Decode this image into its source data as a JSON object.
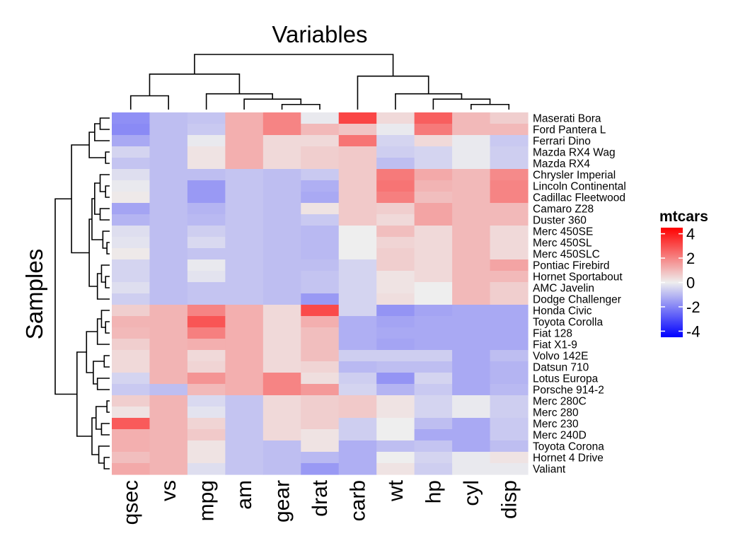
{
  "chart_data": {
    "type": "heatmap",
    "title": "Variables",
    "ylabel": "Samples",
    "legend_title": "mtcars",
    "legend_ticks": [
      4,
      2,
      0,
      -2,
      -4
    ],
    "legend_range": [
      -4.5,
      4.5
    ],
    "legend_position": "right",
    "columns": [
      "qsec",
      "vs",
      "mpg",
      "am",
      "gear",
      "drat",
      "carb",
      "wt",
      "hp",
      "cyl",
      "disp"
    ],
    "rows": [
      "Maserati Bora",
      "Ford Pantera L",
      "Ferrari Dino",
      "Mazda RX4 Wag",
      "Mazda RX4",
      "Chrysler Imperial",
      "Lincoln Continental",
      "Cadillac Fleetwood",
      "Camaro Z28",
      "Duster 360",
      "Merc 450SE",
      "Merc 450SL",
      "Merc 450SLC",
      "Pontiac Firebird",
      "Hornet Sportabout",
      "AMC Javelin",
      "Dodge Challenger",
      "Honda Civic",
      "Toyota Corolla",
      "Fiat 128",
      "Fiat X1-9",
      "Volvo 142E",
      "Datsun 710",
      "Lotus Europa",
      "Porsche 914-2",
      "Merc 280C",
      "Merc 280",
      "Merc 230",
      "Merc 240D",
      "Toyota Corona",
      "Hornet 4 Drive",
      "Valiant"
    ],
    "values": [
      [
        -1.8,
        -0.9,
        -0.8,
        1.2,
        2.0,
        -0.1,
        3.2,
        0.4,
        2.7,
        1.0,
        0.6
      ],
      [
        -1.9,
        -0.9,
        -0.7,
        1.2,
        2.0,
        1.0,
        0.8,
        -0.1,
        2.2,
        1.0,
        1.0
      ],
      [
        -1.3,
        -0.9,
        -0.1,
        1.2,
        0.4,
        0.4,
        2.3,
        -0.5,
        0.4,
        -0.1,
        -0.7
      ],
      [
        -0.5,
        -0.9,
        0.2,
        1.2,
        0.4,
        0.6,
        0.7,
        -0.6,
        -0.5,
        -0.1,
        -0.6
      ],
      [
        -0.8,
        -0.9,
        0.2,
        1.2,
        0.4,
        0.6,
        0.7,
        -0.9,
        -0.5,
        -0.1,
        -0.6
      ],
      [
        -0.3,
        -0.9,
        -0.9,
        -0.8,
        -0.9,
        -0.7,
        0.7,
        2.2,
        1.3,
        1.0,
        1.9
      ],
      [
        -0.1,
        -0.9,
        -1.6,
        -0.8,
        -0.9,
        -1.2,
        0.7,
        2.3,
        1.1,
        1.0,
        2.0
      ],
      [
        0.1,
        -0.9,
        -1.6,
        -0.8,
        -0.9,
        -1.3,
        0.7,
        2.1,
        0.9,
        1.0,
        2.0
      ],
      [
        -1.4,
        -0.9,
        -1.1,
        -0.8,
        -0.9,
        0.2,
        0.7,
        0.6,
        1.4,
        1.0,
        1.0
      ],
      [
        -1.1,
        -0.9,
        -1.0,
        -0.8,
        -0.9,
        -0.7,
        0.7,
        0.4,
        1.4,
        1.0,
        1.0
      ],
      [
        -0.3,
        -0.9,
        -0.6,
        -0.8,
        -0.9,
        -1.0,
        0.0,
        0.9,
        0.4,
        1.0,
        0.4
      ],
      [
        -0.2,
        -0.9,
        -0.4,
        -0.8,
        -0.9,
        -1.0,
        0.0,
        0.5,
        0.4,
        1.0,
        0.4
      ],
      [
        0.1,
        -0.9,
        -0.8,
        -0.8,
        -0.9,
        -1.0,
        0.0,
        0.6,
        0.4,
        1.0,
        0.4
      ],
      [
        -0.5,
        -0.9,
        -0.1,
        -0.8,
        -0.9,
        -0.9,
        -0.5,
        0.6,
        0.4,
        1.0,
        1.4
      ],
      [
        -0.5,
        -0.9,
        -0.2,
        -0.8,
        -0.9,
        -0.8,
        -0.5,
        0.2,
        0.4,
        1.0,
        1.0
      ],
      [
        -0.3,
        -0.9,
        -0.8,
        -0.8,
        -0.9,
        -0.8,
        -0.5,
        0.2,
        0.0,
        1.0,
        0.6
      ],
      [
        -0.6,
        -0.9,
        -0.8,
        -0.8,
        -0.9,
        -1.6,
        -0.5,
        0.3,
        0.0,
        1.0,
        0.6
      ],
      [
        0.6,
        1.1,
        2.0,
        1.2,
        0.4,
        3.1,
        -0.5,
        -1.7,
        -1.4,
        -1.3,
        -1.3
      ],
      [
        1.1,
        1.1,
        2.9,
        1.2,
        0.4,
        1.2,
        -1.2,
        -1.4,
        -1.3,
        -1.3,
        -1.3
      ],
      [
        1.0,
        1.1,
        2.1,
        1.2,
        0.4,
        0.9,
        -1.2,
        -1.3,
        -1.3,
        -1.3,
        -1.3
      ],
      [
        0.6,
        1.1,
        1.2,
        1.2,
        0.4,
        0.9,
        -1.2,
        -1.4,
        -1.3,
        -1.3,
        -1.3
      ],
      [
        0.4,
        1.1,
        0.4,
        1.2,
        0.4,
        0.9,
        -0.6,
        -0.6,
        -0.6,
        -1.3,
        -0.9
      ],
      [
        0.4,
        1.1,
        0.5,
        1.2,
        0.4,
        0.5,
        -1.0,
        -0.9,
        -0.9,
        -1.3,
        -1.1
      ],
      [
        -0.5,
        1.1,
        1.7,
        1.2,
        2.0,
        0.3,
        -0.6,
        -1.7,
        -0.5,
        -1.3,
        -1.1
      ],
      [
        -0.7,
        -0.9,
        1.0,
        1.2,
        2.0,
        1.6,
        -0.5,
        -1.1,
        -0.7,
        -1.3,
        -1.0
      ],
      [
        0.6,
        1.1,
        -0.4,
        -0.8,
        0.4,
        0.6,
        0.7,
        0.2,
        -0.5,
        -0.1,
        -0.6
      ],
      [
        0.2,
        1.1,
        -0.2,
        -0.8,
        0.4,
        0.6,
        0.7,
        0.2,
        -0.5,
        -0.1,
        -0.6
      ],
      [
        2.8,
        1.1,
        0.5,
        -0.8,
        0.4,
        0.6,
        -0.6,
        0.0,
        -0.9,
        -1.3,
        -0.7
      ],
      [
        1.2,
        1.1,
        0.7,
        -0.8,
        0.4,
        0.2,
        -0.6,
        0.0,
        -1.3,
        -1.3,
        -0.7
      ],
      [
        1.2,
        1.1,
        0.2,
        -0.8,
        -0.9,
        0.2,
        -1.2,
        -0.9,
        -0.8,
        -1.3,
        -0.9
      ],
      [
        0.9,
        1.1,
        0.2,
        -0.8,
        -0.9,
        -1.0,
        -1.2,
        0.0,
        -0.5,
        -0.1,
        0.2
      ],
      [
        1.3,
        1.1,
        -0.3,
        -0.8,
        -0.9,
        -1.6,
        -1.2,
        0.2,
        -0.6,
        -0.1,
        -0.1
      ]
    ],
    "col_dendrogram": [
      [
        4,
        5,
        0.26
      ],
      [
        3,
        11,
        0.53
      ],
      [
        2,
        12,
        0.8
      ],
      [
        0,
        1,
        0.7
      ],
      [
        9,
        10,
        0.26
      ],
      [
        8,
        15,
        0.53
      ],
      [
        7,
        16,
        0.8
      ],
      [
        14,
        13,
        1.8
      ],
      [
        6,
        17,
        1.7
      ],
      [
        18,
        19,
        2.8
      ]
    ],
    "row_dendrogram": [
      [
        3,
        4,
        0.15
      ],
      [
        0,
        1,
        0.35
      ],
      [
        33,
        2,
        0.55
      ],
      [
        34,
        32,
        0.75
      ],
      [
        6,
        7,
        0.15
      ],
      [
        5,
        36,
        0.35
      ],
      [
        8,
        9,
        0.35
      ],
      [
        37,
        38,
        0.55
      ],
      [
        11,
        12,
        0.1
      ],
      [
        10,
        40,
        0.25
      ],
      [
        41,
        39,
        0.65
      ],
      [
        14,
        15,
        0.15
      ],
      [
        13,
        43,
        0.3
      ],
      [
        44,
        16,
        0.45
      ],
      [
        42,
        45,
        0.75
      ],
      [
        46,
        35,
        1.4
      ],
      [
        18,
        19,
        0.15
      ],
      [
        17,
        48,
        0.3
      ],
      [
        49,
        20,
        0.45
      ],
      [
        21,
        22,
        0.2
      ],
      [
        23,
        24,
        0.45
      ],
      [
        51,
        52,
        0.6
      ],
      [
        50,
        53,
        0.85
      ],
      [
        25,
        26,
        0.1
      ],
      [
        27,
        28,
        0.3
      ],
      [
        55,
        56,
        0.5
      ],
      [
        30,
        31,
        0.2
      ],
      [
        29,
        58,
        0.4
      ],
      [
        57,
        59,
        0.65
      ],
      [
        54,
        60,
        1.2
      ],
      [
        47,
        61,
        2.0
      ]
    ]
  }
}
